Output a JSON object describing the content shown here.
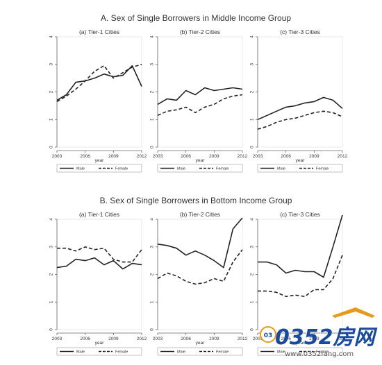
{
  "figure": {
    "panels": [
      {
        "title": "A. Sex of Single Borrowers in Middle Income Group",
        "charts": [
          {
            "type": "line",
            "title": "(a) Tier-1 Cities",
            "xlabel": "year",
            "ylabel": "",
            "xticks": [
              2003,
              2006,
              2009,
              2012
            ],
            "yticks": [
              0,
              1,
              2,
              3,
              4
            ],
            "xlim": [
              2003,
              2012
            ],
            "ylim": [
              0,
              4
            ],
            "x": [
              2003,
              2004,
              2005,
              2006,
              2007,
              2008,
              2009,
              2010,
              2011,
              2012
            ],
            "series": [
              {
                "name": "Male",
                "style": "solid",
                "values": [
                  1.7,
                  1.9,
                  2.35,
                  2.4,
                  2.5,
                  2.65,
                  2.55,
                  2.6,
                  2.95,
                  2.2
                ]
              },
              {
                "name": "Female",
                "style": "dashed",
                "values": [
                  1.65,
                  1.85,
                  2.1,
                  2.4,
                  2.75,
                  2.95,
                  2.5,
                  2.7,
                  2.9,
                  3.0
                ]
              }
            ],
            "legend": "bottom"
          },
          {
            "type": "line",
            "title": "(b) Tier-2 Cities",
            "xlabel": "year",
            "ylabel": "",
            "xticks": [
              2003,
              2006,
              2009,
              2012
            ],
            "yticks": [
              0,
              1,
              2,
              3,
              4
            ],
            "xlim": [
              2003,
              2012
            ],
            "ylim": [
              0,
              4
            ],
            "x": [
              2003,
              2004,
              2005,
              2006,
              2007,
              2008,
              2009,
              2010,
              2011,
              2012
            ],
            "series": [
              {
                "name": "Male",
                "style": "solid",
                "values": [
                  1.55,
                  1.75,
                  1.7,
                  2.05,
                  1.9,
                  2.15,
                  2.05,
                  2.1,
                  2.15,
                  2.1
                ]
              },
              {
                "name": "Female",
                "style": "dashed",
                "values": [
                  1.15,
                  1.3,
                  1.35,
                  1.45,
                  1.25,
                  1.45,
                  1.55,
                  1.75,
                  1.85,
                  1.9
                ]
              }
            ],
            "legend": "bottom"
          },
          {
            "type": "line",
            "title": "(c) Tier-3 Cities",
            "xlabel": "year",
            "ylabel": "",
            "xticks": [
              2003,
              2006,
              2009,
              2012
            ],
            "yticks": [
              0,
              1,
              2,
              3,
              4
            ],
            "xlim": [
              2003,
              2012
            ],
            "ylim": [
              0,
              4
            ],
            "x": [
              2003,
              2004,
              2005,
              2006,
              2007,
              2008,
              2009,
              2010,
              2011,
              2012
            ],
            "series": [
              {
                "name": "Male",
                "style": "solid",
                "values": [
                  1.0,
                  1.15,
                  1.3,
                  1.45,
                  1.5,
                  1.6,
                  1.65,
                  1.8,
                  1.7,
                  1.4
                ]
              },
              {
                "name": "Female",
                "style": "dashed",
                "values": [
                  0.65,
                  0.75,
                  0.9,
                  1.0,
                  1.05,
                  1.15,
                  1.25,
                  1.3,
                  1.25,
                  1.1
                ]
              }
            ],
            "legend": "bottom"
          }
        ]
      },
      {
        "title": "B. Sex of Single Borrowers in Bottom Income Group",
        "charts": [
          {
            "type": "line",
            "title": "(a) Tier-1 Cities",
            "xlabel": "year",
            "ylabel": "",
            "xticks": [
              2003,
              2006,
              2009,
              2012
            ],
            "yticks": [
              0,
              1,
              2,
              3,
              4
            ],
            "xlim": [
              2003,
              2012
            ],
            "ylim": [
              0,
              4
            ],
            "x": [
              2003,
              2004,
              2005,
              2006,
              2007,
              2008,
              2009,
              2010,
              2011,
              2012
            ],
            "series": [
              {
                "name": "Male",
                "style": "solid",
                "values": [
                  2.25,
                  2.3,
                  2.55,
                  2.5,
                  2.6,
                  2.35,
                  2.5,
                  2.2,
                  2.4,
                  2.35
                ]
              },
              {
                "name": "Female",
                "style": "dashed",
                "values": [
                  2.95,
                  2.95,
                  2.85,
                  3.0,
                  2.9,
                  2.95,
                  2.55,
                  2.45,
                  2.45,
                  2.9
                ]
              }
            ],
            "legend": "bottom"
          },
          {
            "type": "line",
            "title": "(b) Tier-2 Cities",
            "xlabel": "year",
            "ylabel": "",
            "xticks": [
              2003,
              2006,
              2009,
              2012
            ],
            "yticks": [
              0,
              1,
              2,
              3,
              4
            ],
            "xlim": [
              2003,
              2012
            ],
            "ylim": [
              0,
              4
            ],
            "x": [
              2003,
              2004,
              2005,
              2006,
              2007,
              2008,
              2009,
              2010,
              2011,
              2012
            ],
            "series": [
              {
                "name": "Male",
                "style": "solid",
                "values": [
                  3.1,
                  3.05,
                  2.95,
                  2.7,
                  2.85,
                  2.7,
                  2.5,
                  2.25,
                  3.65,
                  4.05
                ]
              },
              {
                "name": "Female",
                "style": "dashed",
                "values": [
                  1.85,
                  2.05,
                  1.95,
                  1.75,
                  1.65,
                  1.7,
                  1.85,
                  1.75,
                  2.45,
                  2.9
                ]
              }
            ],
            "legend": "bottom"
          },
          {
            "type": "line",
            "title": "(c) Tier-3 Cities",
            "xlabel": "year",
            "ylabel": "",
            "xticks": [
              2003,
              2006,
              2009,
              2012
            ],
            "yticks": [
              0,
              1,
              2,
              3,
              4
            ],
            "xlim": [
              2003,
              2012
            ],
            "ylim": [
              0,
              4
            ],
            "x": [
              2003,
              2004,
              2005,
              2006,
              2007,
              2008,
              2009,
              2010,
              2011,
              2012
            ],
            "series": [
              {
                "name": "Male",
                "style": "solid",
                "values": [
                  2.45,
                  2.45,
                  2.35,
                  2.05,
                  2.15,
                  2.1,
                  2.1,
                  1.9,
                  3.0,
                  4.15
                ]
              },
              {
                "name": "Female",
                "style": "dashed",
                "values": [
                  1.4,
                  1.4,
                  1.35,
                  1.2,
                  1.25,
                  1.2,
                  1.45,
                  1.45,
                  1.85,
                  2.7
                ]
              }
            ],
            "legend": "bottom"
          }
        ]
      }
    ]
  },
  "watermark": {
    "logo_text": "0352房网",
    "url": "www.0352fang.com",
    "badge": "03"
  },
  "colors": {
    "line": "#222222",
    "axis": "#666666",
    "text": "#333333",
    "watermark_blue": "#1a4a9a",
    "watermark_orange": "#e89a1a"
  }
}
